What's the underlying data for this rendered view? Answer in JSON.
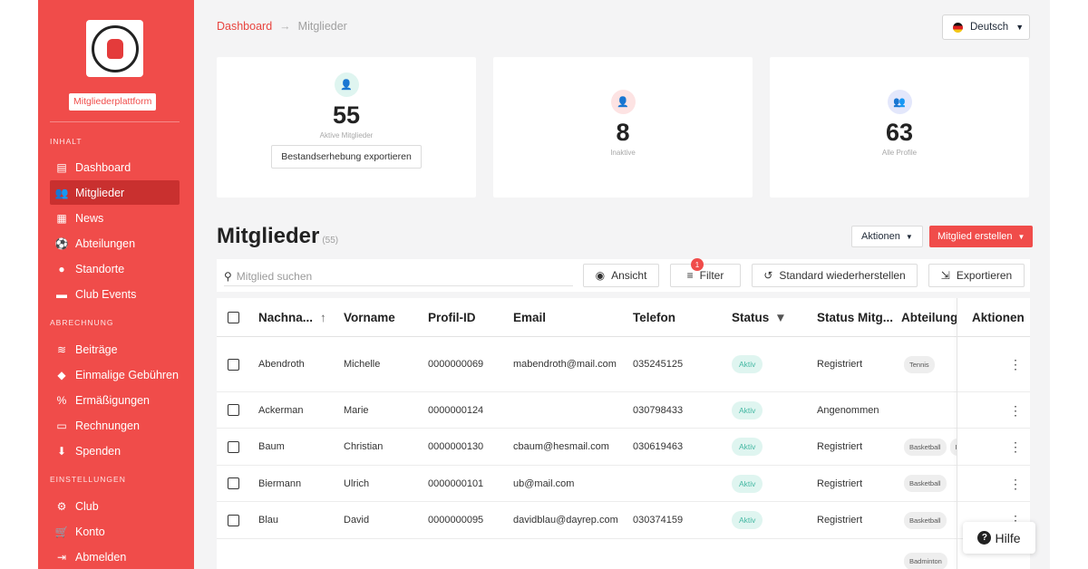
{
  "sidebar": {
    "platform_label": "Mitgliederplattform",
    "sections": {
      "content": "INHALT",
      "billing": "ABRECHNUNG",
      "settings": "EINSTELLUNGEN"
    },
    "items": [
      {
        "label": "Dashboard",
        "icon": "table-icon"
      },
      {
        "label": "Mitglieder",
        "icon": "users-icon",
        "active": true
      },
      {
        "label": "News",
        "icon": "newspaper-icon"
      },
      {
        "label": "Abteilungen",
        "icon": "ball-icon"
      },
      {
        "label": "Standorte",
        "icon": "location-pin-icon"
      },
      {
        "label": "Club Events",
        "icon": "calendar-icon"
      },
      {
        "label": "Beiträge",
        "icon": "layers-icon"
      },
      {
        "label": "Einmalige Gebühren",
        "icon": "tag-icon"
      },
      {
        "label": "Ermäßigungen",
        "icon": "percent-icon"
      },
      {
        "label": "Rechnungen",
        "icon": "credit-card-icon"
      },
      {
        "label": "Spenden",
        "icon": "hand-holding-icon"
      },
      {
        "label": "Club",
        "icon": "gear-icon"
      },
      {
        "label": "Konto",
        "icon": "cart-icon"
      },
      {
        "label": "Abmelden",
        "icon": "logout-icon"
      }
    ]
  },
  "breadcrumb": {
    "root": "Dashboard",
    "separator": "→",
    "current": "Mitglieder"
  },
  "language": {
    "label": "Deutsch"
  },
  "stats": [
    {
      "value": "55",
      "label": "Aktive Mitglieder",
      "button": "Bestandserhebung exportieren",
      "color": "#dff5f0",
      "icon_color": "#45b8a3"
    },
    {
      "value": "8",
      "label": "Inaktive",
      "color": "#fde3e3",
      "icon_color": "#e8453f"
    },
    {
      "value": "63",
      "label": "Alle Profile",
      "color": "#e3e7fb",
      "icon_color": "#5a6ed8"
    }
  ],
  "page": {
    "title": "Mitglieder",
    "count": "(55)",
    "actions_label": "Aktionen",
    "create_label": "Mitglied erstellen"
  },
  "toolbar": {
    "search_placeholder": "Mitglied suchen",
    "view_label": "Ansicht",
    "filter_label": "Filter",
    "filter_badge": "1",
    "reset_label": "Standard wiederherstellen",
    "export_label": "Exportieren"
  },
  "table": {
    "headers": [
      "Nachna...",
      "Vorname",
      "Profil-ID",
      "Email",
      "Telefon",
      "Status",
      "Status Mitg...",
      "Abteilunge",
      "Aktionen"
    ],
    "rows": [
      {
        "last": "Abendroth",
        "first": "Michelle",
        "id": "0000000069",
        "email": "mabendroth@mail.com",
        "phone": "035245125",
        "status": "Aktiv",
        "membership": "Registriert",
        "departments": [
          "Tennis"
        ]
      },
      {
        "last": "Ackerman",
        "first": "Marie",
        "id": "0000000124",
        "email": "",
        "phone": "030798433",
        "status": "Aktiv",
        "membership": "Angenommen",
        "departments": []
      },
      {
        "last": "Baum",
        "first": "Christian",
        "id": "0000000130",
        "email": "cbaum@hesmail.com",
        "phone": "030619463",
        "status": "Aktiv",
        "membership": "Registriert",
        "departments": [
          "Basketball",
          "F"
        ]
      },
      {
        "last": "Biermann",
        "first": "Ulrich",
        "id": "0000000101",
        "email": "ub@mail.com",
        "phone": "",
        "status": "Aktiv",
        "membership": "Registriert",
        "departments": [
          "Basketball"
        ]
      },
      {
        "last": "Blau",
        "first": "David",
        "id": "0000000095",
        "email": "davidblau@dayrep.com",
        "phone": "030374159",
        "status": "Aktiv",
        "membership": "Registriert",
        "departments": [
          "Basketball"
        ]
      },
      {
        "last": "",
        "first": "",
        "id": "",
        "email": "",
        "phone": "",
        "status": "",
        "membership": "",
        "departments": [
          "Badminton"
        ]
      }
    ]
  },
  "help": {
    "label": "Hilfe"
  },
  "colors": {
    "brand": "#f04c4a",
    "brand_dark": "#c9302f",
    "status_active": "#45b8a3"
  }
}
